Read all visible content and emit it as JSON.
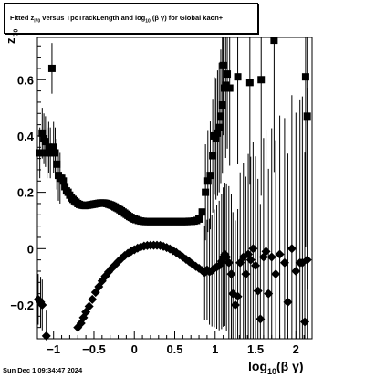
{
  "title": {
    "prefix": "Fitted  z",
    "z_sub": "l70",
    "middle": "  versus TpcTrackLength and log",
    "log_sub": "10",
    "suffix": " (β  γ) for Global kaon+"
  },
  "x_axis_title": {
    "main": "log",
    "sub": "10",
    "rest": "(β γ)"
  },
  "y_axis_title": {
    "main": "z",
    "sub": "l70"
  },
  "footer": "Sun Dec  1 09:34:47 2024",
  "chart_data": {
    "type": "scatter",
    "xlim": [
      -1.2,
      2.2
    ],
    "ylim": [
      -0.32,
      0.75
    ],
    "xticks": [
      -1,
      -0.5,
      0,
      0.5,
      1,
      1.5,
      2
    ],
    "xtick_labels": [
      "−1",
      "−0.5",
      "0",
      "0.5",
      "1",
      "1.5",
      "2"
    ],
    "yticks": [
      -0.2,
      0,
      0.2,
      0.4,
      0.6
    ],
    "ytick_labels": [
      "−0.2",
      "0",
      "0.2",
      "0.4",
      "0.6"
    ],
    "grid": false,
    "legend": "none",
    "series": [
      {
        "marker": "square",
        "points": [
          [
            -1.17,
            0.34
          ],
          [
            -1.14,
            0.41
          ],
          [
            -1.12,
            0.39
          ],
          [
            -1.1,
            0.38
          ],
          [
            -1.08,
            0.34
          ],
          [
            -1.06,
            0.36
          ],
          [
            -1.04,
            0.34
          ],
          [
            -1.02,
            0.64
          ],
          [
            -1.0,
            0.36
          ],
          [
            -0.98,
            0.34
          ],
          [
            -0.96,
            0.3
          ],
          [
            -0.94,
            0.26
          ],
          [
            -0.92,
            0.25
          ],
          [
            -0.9,
            0.25
          ],
          [
            -0.88,
            0.24
          ],
          [
            -0.86,
            0.22
          ],
          [
            -0.84,
            0.205
          ],
          [
            -0.82,
            0.2
          ],
          [
            -0.8,
            0.19
          ],
          [
            -0.78,
            0.18
          ],
          [
            -0.76,
            0.175
          ],
          [
            -0.74,
            0.17
          ],
          [
            -0.72,
            0.165
          ],
          [
            -0.7,
            0.16
          ],
          [
            -0.68,
            0.157
          ],
          [
            -0.66,
            0.155
          ],
          [
            -0.64,
            0.154
          ],
          [
            -0.62,
            0.153
          ],
          [
            -0.6,
            0.153
          ],
          [
            -0.58,
            0.154
          ],
          [
            -0.56,
            0.155
          ],
          [
            -0.54,
            0.156
          ],
          [
            -0.52,
            0.157
          ],
          [
            -0.5,
            0.158
          ],
          [
            -0.48,
            0.159
          ],
          [
            -0.46,
            0.16
          ],
          [
            -0.44,
            0.161
          ],
          [
            -0.42,
            0.162
          ],
          [
            -0.4,
            0.162
          ],
          [
            -0.38,
            0.162
          ],
          [
            -0.36,
            0.161
          ],
          [
            -0.34,
            0.16
          ],
          [
            -0.32,
            0.158
          ],
          [
            -0.3,
            0.156
          ],
          [
            -0.28,
            0.154
          ],
          [
            -0.26,
            0.151
          ],
          [
            -0.24,
            0.148
          ],
          [
            -0.22,
            0.145
          ],
          [
            -0.2,
            0.142
          ],
          [
            -0.18,
            0.138
          ],
          [
            -0.16,
            0.134
          ],
          [
            -0.14,
            0.13
          ],
          [
            -0.12,
            0.126
          ],
          [
            -0.1,
            0.122
          ],
          [
            -0.08,
            0.118
          ],
          [
            -0.06,
            0.114
          ],
          [
            -0.04,
            0.111
          ],
          [
            -0.02,
            0.108
          ],
          [
            0.0,
            0.105
          ],
          [
            0.02,
            0.103
          ],
          [
            0.05,
            0.1
          ],
          [
            0.08,
            0.098
          ],
          [
            0.11,
            0.097
          ],
          [
            0.14,
            0.096
          ],
          [
            0.17,
            0.096
          ],
          [
            0.2,
            0.096
          ],
          [
            0.23,
            0.096
          ],
          [
            0.26,
            0.096
          ],
          [
            0.29,
            0.096
          ],
          [
            0.32,
            0.096
          ],
          [
            0.35,
            0.096
          ],
          [
            0.38,
            0.096
          ],
          [
            0.41,
            0.096
          ],
          [
            0.44,
            0.096
          ],
          [
            0.47,
            0.096
          ],
          [
            0.5,
            0.096
          ],
          [
            0.53,
            0.096
          ],
          [
            0.56,
            0.096
          ],
          [
            0.59,
            0.096
          ],
          [
            0.62,
            0.096
          ],
          [
            0.65,
            0.096
          ],
          [
            0.68,
            0.097
          ],
          [
            0.71,
            0.097
          ],
          [
            0.74,
            0.098
          ],
          [
            0.77,
            0.1
          ],
          [
            0.8,
            0.105
          ],
          [
            0.84,
            0.13
          ],
          [
            0.88,
            0.2
          ],
          [
            0.91,
            0.24
          ],
          [
            0.94,
            0.26
          ],
          [
            0.97,
            0.33
          ],
          [
            0.99,
            0.4
          ],
          [
            1.01,
            0.39
          ],
          [
            1.03,
            0.41
          ],
          [
            1.05,
            0.43
          ],
          [
            1.07,
            0.47
          ],
          [
            1.09,
            0.51
          ],
          [
            1.1,
            0.65
          ],
          [
            1.11,
            0.57
          ],
          [
            1.13,
            0.58
          ],
          [
            1.15,
            0.62
          ],
          [
            1.18,
            0.57
          ],
          [
            1.28,
            0.61
          ],
          [
            1.43,
            0.59
          ],
          [
            1.57,
            0.6
          ],
          [
            1.73,
            0.74
          ],
          [
            2.12,
            0.61
          ],
          [
            2.14,
            0.47
          ]
        ]
      },
      {
        "marker": "diamond",
        "points": [
          [
            -1.19,
            -0.18
          ],
          [
            -1.16,
            -0.19
          ],
          [
            -1.14,
            -0.2
          ],
          [
            -1.09,
            -0.31
          ],
          [
            -0.7,
            -0.28
          ],
          [
            -0.66,
            -0.265
          ],
          [
            -0.63,
            -0.245
          ],
          [
            -0.6,
            -0.225
          ],
          [
            -0.56,
            -0.205
          ],
          [
            -0.52,
            -0.18
          ],
          [
            -0.48,
            -0.155
          ],
          [
            -0.44,
            -0.135
          ],
          [
            -0.4,
            -0.115
          ],
          [
            -0.36,
            -0.098
          ],
          [
            -0.32,
            -0.083
          ],
          [
            -0.28,
            -0.07
          ],
          [
            -0.24,
            -0.058
          ],
          [
            -0.2,
            -0.046
          ],
          [
            -0.16,
            -0.035
          ],
          [
            -0.12,
            -0.025
          ],
          [
            -0.08,
            -0.017
          ],
          [
            -0.04,
            -0.01
          ],
          [
            0.0,
            -0.004
          ],
          [
            0.04,
            0.002
          ],
          [
            0.08,
            0.006
          ],
          [
            0.12,
            0.009
          ],
          [
            0.16,
            0.011
          ],
          [
            0.2,
            0.012
          ],
          [
            0.24,
            0.012
          ],
          [
            0.28,
            0.012
          ],
          [
            0.32,
            0.011
          ],
          [
            0.36,
            0.008
          ],
          [
            0.4,
            0.004
          ],
          [
            0.44,
            -0.001
          ],
          [
            0.48,
            -0.007
          ],
          [
            0.52,
            -0.014
          ],
          [
            0.56,
            -0.022
          ],
          [
            0.6,
            -0.03
          ],
          [
            0.64,
            -0.038
          ],
          [
            0.68,
            -0.046
          ],
          [
            0.72,
            -0.055
          ],
          [
            0.76,
            -0.063
          ],
          [
            0.8,
            -0.07
          ],
          [
            0.84,
            -0.078
          ],
          [
            0.87,
            -0.085
          ],
          [
            0.9,
            -0.075
          ],
          [
            0.93,
            -0.082
          ],
          [
            0.96,
            -0.078
          ],
          [
            0.99,
            -0.07
          ],
          [
            1.02,
            -0.065
          ],
          [
            1.05,
            -0.06
          ],
          [
            1.08,
            -0.045
          ],
          [
            1.1,
            -0.03
          ],
          [
            1.12,
            -0.02
          ],
          [
            1.14,
            -0.03
          ],
          [
            1.17,
            -0.05
          ],
          [
            1.2,
            -0.09
          ],
          [
            1.22,
            -0.16
          ],
          [
            1.25,
            -0.2
          ],
          [
            1.28,
            -0.17
          ],
          [
            1.31,
            -0.05
          ],
          [
            1.35,
            -0.03
          ],
          [
            1.38,
            -0.09
          ],
          [
            1.41,
            -0.02
          ],
          [
            1.44,
            -0.04
          ],
          [
            1.47,
            0.0
          ],
          [
            1.5,
            -0.06
          ],
          [
            1.53,
            -0.15
          ],
          [
            1.56,
            -0.25
          ],
          [
            1.6,
            -0.03
          ],
          [
            1.63,
            -0.01
          ],
          [
            1.66,
            -0.16
          ],
          [
            1.7,
            -0.03
          ],
          [
            1.75,
            -0.09
          ],
          [
            1.8,
            -0.02
          ],
          [
            1.86,
            -0.05
          ],
          [
            1.9,
            -0.19
          ],
          [
            1.95,
            0.0
          ],
          [
            2.0,
            -0.08
          ],
          [
            2.05,
            -0.05
          ],
          [
            2.08,
            -0.05
          ],
          [
            2.11,
            -0.26
          ],
          [
            2.14,
            -0.04
          ]
        ]
      }
    ]
  }
}
